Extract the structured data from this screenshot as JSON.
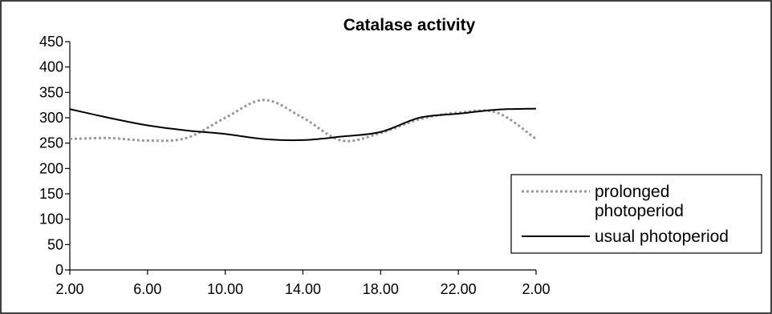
{
  "chart_data": {
    "type": "line",
    "title": "Catalase activity",
    "xlabel": "",
    "ylabel": "",
    "x_ticks": [
      "2.00",
      "6.00",
      "10.00",
      "14.00",
      "18.00",
      "22.00",
      "2.00"
    ],
    "ylim": [
      0,
      450
    ],
    "y_ticks": [
      0,
      50,
      100,
      150,
      200,
      250,
      300,
      350,
      400,
      450
    ],
    "x_positions": [
      0,
      2,
      4,
      6,
      8,
      10,
      12,
      14,
      16,
      18,
      20,
      22,
      24
    ],
    "grid": false,
    "legend_position": "right",
    "series": [
      {
        "name": "prolonged photoperiod",
        "name_lines": [
          "prolonged",
          "photoperiod"
        ],
        "style": "dotted",
        "color": "#999999",
        "values": [
          258,
          260,
          255,
          260,
          300,
          335,
          300,
          255,
          270,
          297,
          310,
          310,
          258
        ]
      },
      {
        "name": "usual photoperiod",
        "name_lines": [
          "usual photoperiod"
        ],
        "style": "solid",
        "color": "#000000",
        "values": [
          317,
          300,
          285,
          275,
          268,
          258,
          256,
          263,
          272,
          300,
          308,
          316,
          318
        ]
      }
    ]
  }
}
